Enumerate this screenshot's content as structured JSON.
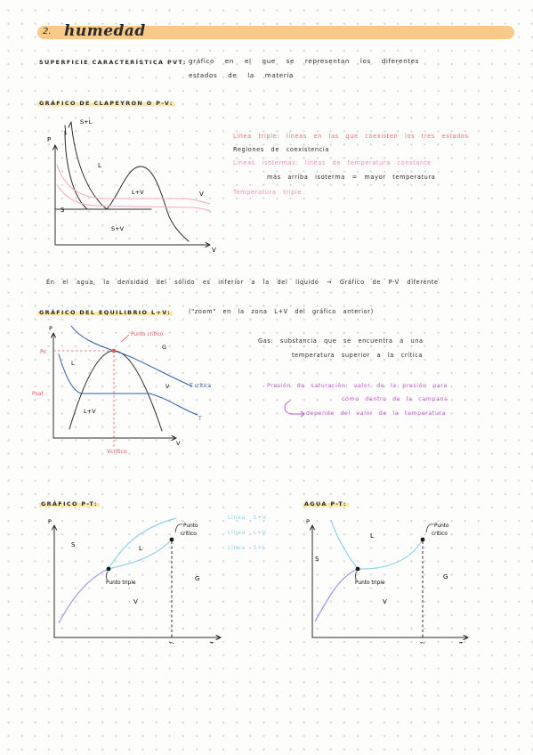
{
  "header": {
    "number": "2.",
    "title": "humedad"
  },
  "pvt": {
    "label": "SUPERFICIE CARACTERÍSTICA PVT:",
    "line1": "gráfico en el que se representan los diferentes",
    "line2": "estados de la materia"
  },
  "clapeyron": {
    "title": "GRÁFICO DE CLAPEYRON O P-V:",
    "p_axis": "P",
    "v_axis": "V",
    "label_sl": "S+L",
    "label_l": "L",
    "label_lv": "L+V",
    "label_v": "V",
    "label_s": "S",
    "label_sv": "S+V",
    "note_triple": "Línea triple: líneas en las que coexisten los tres estados",
    "note_regions": "Regiones de coexistencia",
    "note_iso1": "Líneas isotermas: líneas de temperatura constante",
    "note_iso2": "más arriba isoterma = mayor temperatura",
    "note_ttriple": "Temperatura triple",
    "colors": {
      "dark": "#2a2a2a",
      "isotherm": "#f7a6c4"
    }
  },
  "water_note": "En el agua, la densidad del sólido es inferior a la del líquido → Gráfico de P-V diferente",
  "equilibrium": {
    "title": "GRÁFICO DEL EQUILIBRIO L+V:",
    "subtitle": "(\"zoom\" en la zona L+V del gráfico anterior)",
    "p_axis": "P",
    "v_axis": "V",
    "pc": "Pc",
    "psat": "Psat",
    "vcritico": "Vcrítico",
    "punto_critico": "Punto crítico",
    "t_critica": "T crítica",
    "t": "T",
    "label_l": "L",
    "label_g": "G",
    "label_v": "V",
    "label_lv": "L+V",
    "gas1": "Gas: substancia que se encuentra a una",
    "gas2": "temperatura superior a la crítica",
    "psat1": "Presión de saturación: valor de la presión para",
    "psat2": "cómo dentro de la campana",
    "psat3": "depende del valor de la temperatura",
    "colors": {
      "navy": "#2f5fa8",
      "red": "#e05555",
      "purple": "#c24fd4"
    }
  },
  "pt": {
    "title": "GRÁFICO P-T:",
    "p_axis": "P",
    "t_axis": "T",
    "tc": "Tc",
    "label_s": "S",
    "label_l": "L",
    "label_g": "G",
    "label_v": "V",
    "punto_triple": "Punto triple",
    "punto_critico_1": "Punto",
    "punto_critico_2": "crítico",
    "legend": [
      "Línea S+V",
      "Línea L+V",
      "Línea S+L"
    ],
    "legend_color": "#8fd0ef",
    "colors": {
      "sv": "#9a9ae6",
      "lv": "#8fd0ef",
      "sl": "#8fd0ef"
    }
  },
  "water_pt": {
    "title": "AGUA P-T:",
    "p_axis": "P",
    "t_axis": "T",
    "tc": "Tc",
    "label_s": "S",
    "label_l": "L",
    "label_g": "G",
    "label_v": "V",
    "punto_triple": "Punto triple",
    "punto_critico_1": "Punto",
    "punto_critico_2": "crítico"
  }
}
